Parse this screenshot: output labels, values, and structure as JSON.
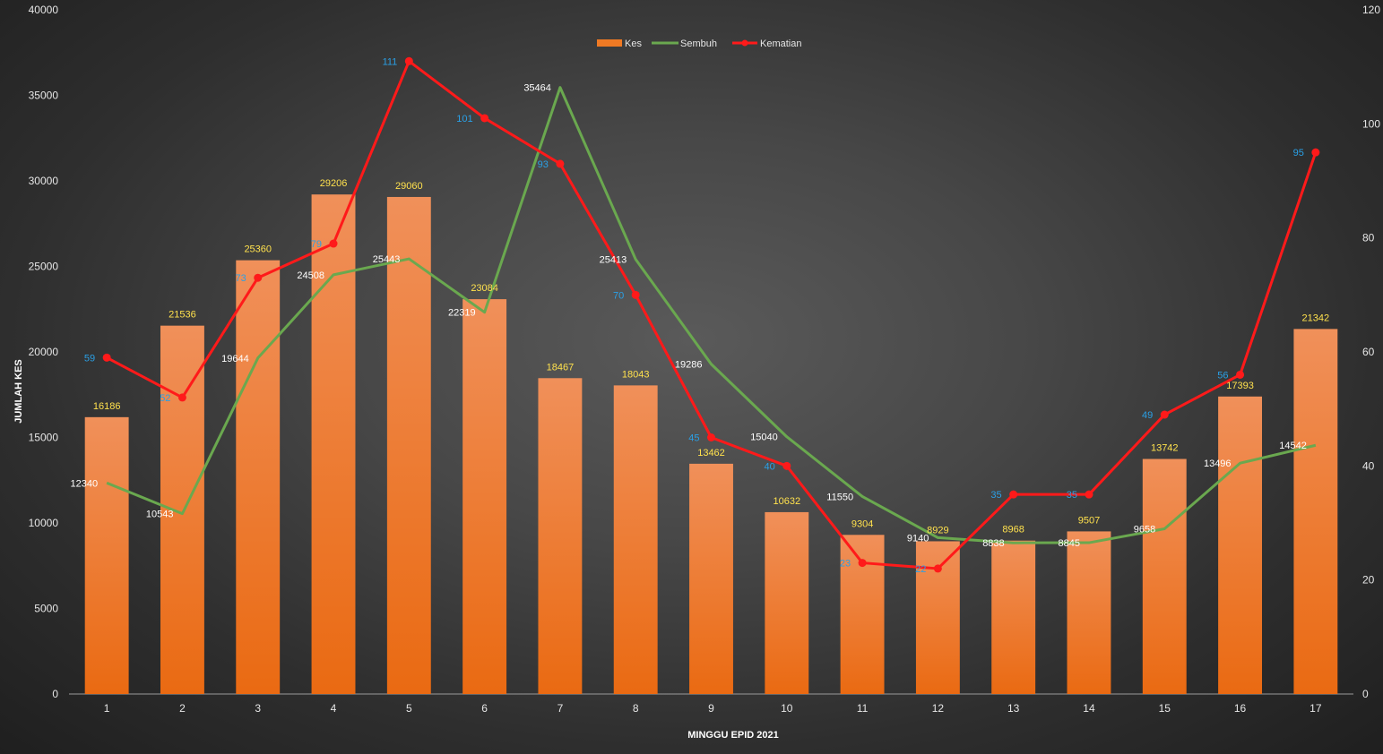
{
  "chart_data": {
    "type": "bar",
    "title": "",
    "xlabel": "MINGGU EPID 2021",
    "ylabel": "JUMLAH KES",
    "ylim": [
      0,
      40000
    ],
    "y2lim": [
      0,
      120
    ],
    "yticks": [
      "0",
      "5000",
      "10000",
      "15000",
      "20000",
      "25000",
      "30000",
      "35000",
      "40000"
    ],
    "y2ticks": [
      "0",
      "20",
      "40",
      "60",
      "80",
      "100",
      "120"
    ],
    "categories": [
      "1",
      "2",
      "3",
      "4",
      "5",
      "6",
      "7",
      "8",
      "9",
      "10",
      "11",
      "12",
      "13",
      "14",
      "15",
      "16",
      "17"
    ],
    "legend_position": "top-center",
    "series": [
      {
        "name": "Kes",
        "type": "bar",
        "axis": "left",
        "color": "#f07a24",
        "label_color": "#ffe14d",
        "values": [
          16186,
          21536,
          25360,
          29206,
          29060,
          23084,
          18467,
          18043,
          13462,
          10632,
          9304,
          8929,
          8968,
          9507,
          13742,
          17393,
          21342
        ]
      },
      {
        "name": "Sembuh",
        "type": "line",
        "axis": "left",
        "color": "#6aa84f",
        "label_color": "#ffffff",
        "values": [
          12340,
          10543,
          19644,
          24508,
          25443,
          22319,
          35464,
          25413,
          19286,
          15040,
          11550,
          9140,
          8838,
          8845,
          9658,
          13496,
          14542
        ]
      },
      {
        "name": "Kematian",
        "type": "line",
        "axis": "right",
        "color": "#ff1a1a",
        "label_color": "#2aa0e6",
        "values": [
          59,
          52,
          73,
          79,
          111,
          101,
          93,
          70,
          45,
          40,
          23,
          22,
          35,
          35,
          49,
          56,
          95
        ]
      }
    ]
  }
}
